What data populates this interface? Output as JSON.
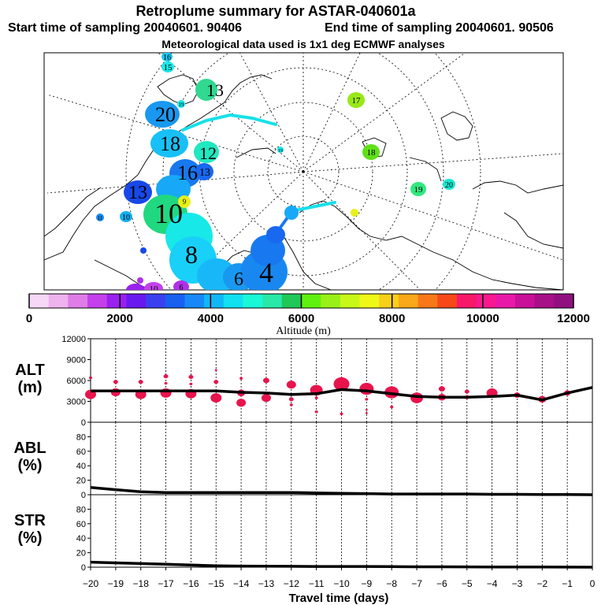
{
  "header": {
    "title": "Retroplume summary for ASTAR-040601a",
    "start": "Start time of sampling 20040601. 90406",
    "end": "End time of sampling 20040601. 90506",
    "met": "Meteorological data used is 1x1 deg ECMWF analyses"
  },
  "colorbar": {
    "label": "Altitude (m)",
    "ticks": [
      "0",
      "2000",
      "4000",
      "6000",
      "8000",
      "10000",
      "12000"
    ],
    "colors": [
      "#f6d8f6",
      "#eeb2ee",
      "#e07ce8",
      "#c440ec",
      "#9a20f0",
      "#6a18f0",
      "#3a40f0",
      "#1860f0",
      "#1888f8",
      "#10b8f8",
      "#10e0f0",
      "#18f8d8",
      "#28e8a8",
      "#20c858",
      "#60f010",
      "#98f018",
      "#c8f818",
      "#f0f818",
      "#f8d018",
      "#f8a818",
      "#f87818",
      "#f84818",
      "#f81868",
      "#f81890",
      "#e818a8",
      "#c81098",
      "#a81088",
      "#901080"
    ]
  },
  "map": {
    "labels": [
      {
        "text": "16",
        "color": "#1ac8f0"
      },
      {
        "text": "15",
        "color": "#18e8e8"
      },
      {
        "text": "13",
        "color": "#30d890"
      },
      {
        "text": "20",
        "color": "#1898f0"
      },
      {
        "text": "17",
        "color": "#98e818"
      },
      {
        "text": "18",
        "color": "#18e8e8"
      },
      {
        "text": "12",
        "color": "#20e8c0"
      },
      {
        "text": "16",
        "color": "#1878f0"
      },
      {
        "text": "13",
        "color": "#1868f0"
      },
      {
        "text": "13",
        "color": "#1848e8"
      },
      {
        "text": "18",
        "color": "#60e018"
      },
      {
        "text": "19",
        "color": "#30e880"
      },
      {
        "text": "20",
        "color": "#18e8d0"
      },
      {
        "text": "10",
        "color": "#20d880"
      },
      {
        "text": "9",
        "color": "#e8f018"
      },
      {
        "text": "8",
        "color": "#18d0f8"
      },
      {
        "text": "6",
        "color": "#18b8f8"
      },
      {
        "text": "4",
        "color": "#1898f0"
      },
      {
        "text": "10",
        "color": "#10d0f0"
      },
      {
        "text": "11",
        "color": "#1888f0"
      },
      {
        "text": "10",
        "color": "#9a20f0"
      },
      {
        "text": "6",
        "color": "#b030e8"
      },
      {
        "text": "19",
        "color": "#1888f0"
      },
      {
        "text": "19",
        "color": "#10b0f0"
      }
    ]
  },
  "chart_data": [
    {
      "type": "scatter",
      "name": "ALT",
      "ylabel": "ALT\n(m)",
      "ylim": [
        0,
        12000
      ],
      "yticks": [
        0,
        3000,
        6000,
        9000,
        12000
      ],
      "xlim": [
        -20,
        0
      ],
      "mean_line": {
        "x": [
          -20,
          -19,
          -18,
          -17,
          -16,
          -15,
          -14,
          -13,
          -12,
          -11,
          -10,
          -9,
          -8,
          -7,
          -6,
          -5,
          -4,
          -3,
          -2,
          -1,
          0
        ],
        "y": [
          4500,
          4500,
          4500,
          4500,
          4500,
          4500,
          4300,
          4200,
          4000,
          4100,
          4700,
          4500,
          4100,
          3700,
          3600,
          3600,
          3700,
          3900,
          3200,
          4200,
          5000
        ]
      },
      "points": [
        {
          "x": -20,
          "y": 4000,
          "r": 7
        },
        {
          "x": -20,
          "y": 6400,
          "r": 2
        },
        {
          "x": -19,
          "y": 4300,
          "r": 6
        },
        {
          "x": -19,
          "y": 5800,
          "r": 3
        },
        {
          "x": -18,
          "y": 4000,
          "r": 7
        },
        {
          "x": -18,
          "y": 5800,
          "r": 3
        },
        {
          "x": -17,
          "y": 4200,
          "r": 7
        },
        {
          "x": -17,
          "y": 6600,
          "r": 3
        },
        {
          "x": -17,
          "y": 5600,
          "r": 2
        },
        {
          "x": -16,
          "y": 4100,
          "r": 7
        },
        {
          "x": -16,
          "y": 6500,
          "r": 3
        },
        {
          "x": -16,
          "y": 5500,
          "r": 2
        },
        {
          "x": -15,
          "y": 3500,
          "r": 7
        },
        {
          "x": -15,
          "y": 5800,
          "r": 3
        },
        {
          "x": -15,
          "y": 7500,
          "r": 1.5
        },
        {
          "x": -14,
          "y": 2800,
          "r": 6
        },
        {
          "x": -14,
          "y": 4200,
          "r": 5
        },
        {
          "x": -14,
          "y": 6300,
          "r": 2
        },
        {
          "x": -13,
          "y": 3500,
          "r": 6
        },
        {
          "x": -13,
          "y": 6000,
          "r": 4
        },
        {
          "x": -12,
          "y": 3300,
          "r": 3
        },
        {
          "x": -12,
          "y": 2500,
          "r": 2
        },
        {
          "x": -12,
          "y": 5400,
          "r": 6
        },
        {
          "x": -11,
          "y": 4600,
          "r": 8
        },
        {
          "x": -11,
          "y": 1500,
          "r": 2
        },
        {
          "x": -11,
          "y": 3500,
          "r": 2
        },
        {
          "x": -10,
          "y": 5500,
          "r": 10
        },
        {
          "x": -10,
          "y": 1200,
          "r": 2
        },
        {
          "x": -9,
          "y": 4800,
          "r": 9
        },
        {
          "x": -9,
          "y": 3300,
          "r": 2
        },
        {
          "x": -9,
          "y": 1800,
          "r": 1.5
        },
        {
          "x": -9,
          "y": 1300,
          "r": 1.5
        },
        {
          "x": -8,
          "y": 4300,
          "r": 9
        },
        {
          "x": -8,
          "y": 2200,
          "r": 2
        },
        {
          "x": -7,
          "y": 3500,
          "r": 8
        },
        {
          "x": -6,
          "y": 3600,
          "r": 5
        },
        {
          "x": -6,
          "y": 4800,
          "r": 4
        },
        {
          "x": -5,
          "y": 3600,
          "r": 3
        },
        {
          "x": -5,
          "y": 4400,
          "r": 3
        },
        {
          "x": -4,
          "y": 4200,
          "r": 7
        },
        {
          "x": -3,
          "y": 3900,
          "r": 4
        },
        {
          "x": -2,
          "y": 3300,
          "r": 5
        },
        {
          "x": -1,
          "y": 4200,
          "r": 4
        }
      ]
    },
    {
      "type": "line",
      "name": "ABL",
      "ylabel": "ABL\n(%)",
      "ylim": [
        0,
        100
      ],
      "yticks": [
        0,
        20,
        40,
        60,
        80
      ],
      "x": [
        -20,
        -19,
        -18,
        -17,
        -16,
        -15,
        -14,
        -13,
        -12,
        -11,
        -10,
        -9,
        -8,
        -7,
        -6,
        -5,
        -4,
        -3,
        -2,
        -1,
        0
      ],
      "y": [
        10,
        7,
        4,
        3,
        3,
        3,
        3,
        3,
        3,
        2.5,
        2,
        1.5,
        1,
        1,
        1,
        1,
        0.5,
        0.5,
        0.3,
        0.2,
        0
      ]
    },
    {
      "type": "line",
      "name": "STR",
      "ylabel": "STR\n(%)",
      "ylim": [
        0,
        100
      ],
      "yticks": [
        0,
        20,
        40,
        60,
        80
      ],
      "xlabel": "Travel time (days)",
      "xticks": [
        -20,
        -19,
        -18,
        -17,
        -16,
        -15,
        -14,
        -13,
        -12,
        -11,
        -10,
        -9,
        -8,
        -7,
        -6,
        -5,
        -4,
        -3,
        -2,
        -1,
        0
      ],
      "x": [
        -20,
        -19,
        -18,
        -17,
        -16,
        -15,
        -14,
        -13,
        -12,
        -11,
        -10,
        -9,
        -8,
        -7,
        -6,
        -5,
        -4,
        -3,
        -2,
        -1,
        0
      ],
      "y": [
        7,
        6,
        5,
        4,
        3,
        2,
        1.5,
        1.3,
        1.2,
        1,
        1,
        1,
        0.8,
        0.5,
        0.5,
        0.4,
        0.3,
        0.3,
        0.2,
        0.1,
        0
      ]
    }
  ]
}
